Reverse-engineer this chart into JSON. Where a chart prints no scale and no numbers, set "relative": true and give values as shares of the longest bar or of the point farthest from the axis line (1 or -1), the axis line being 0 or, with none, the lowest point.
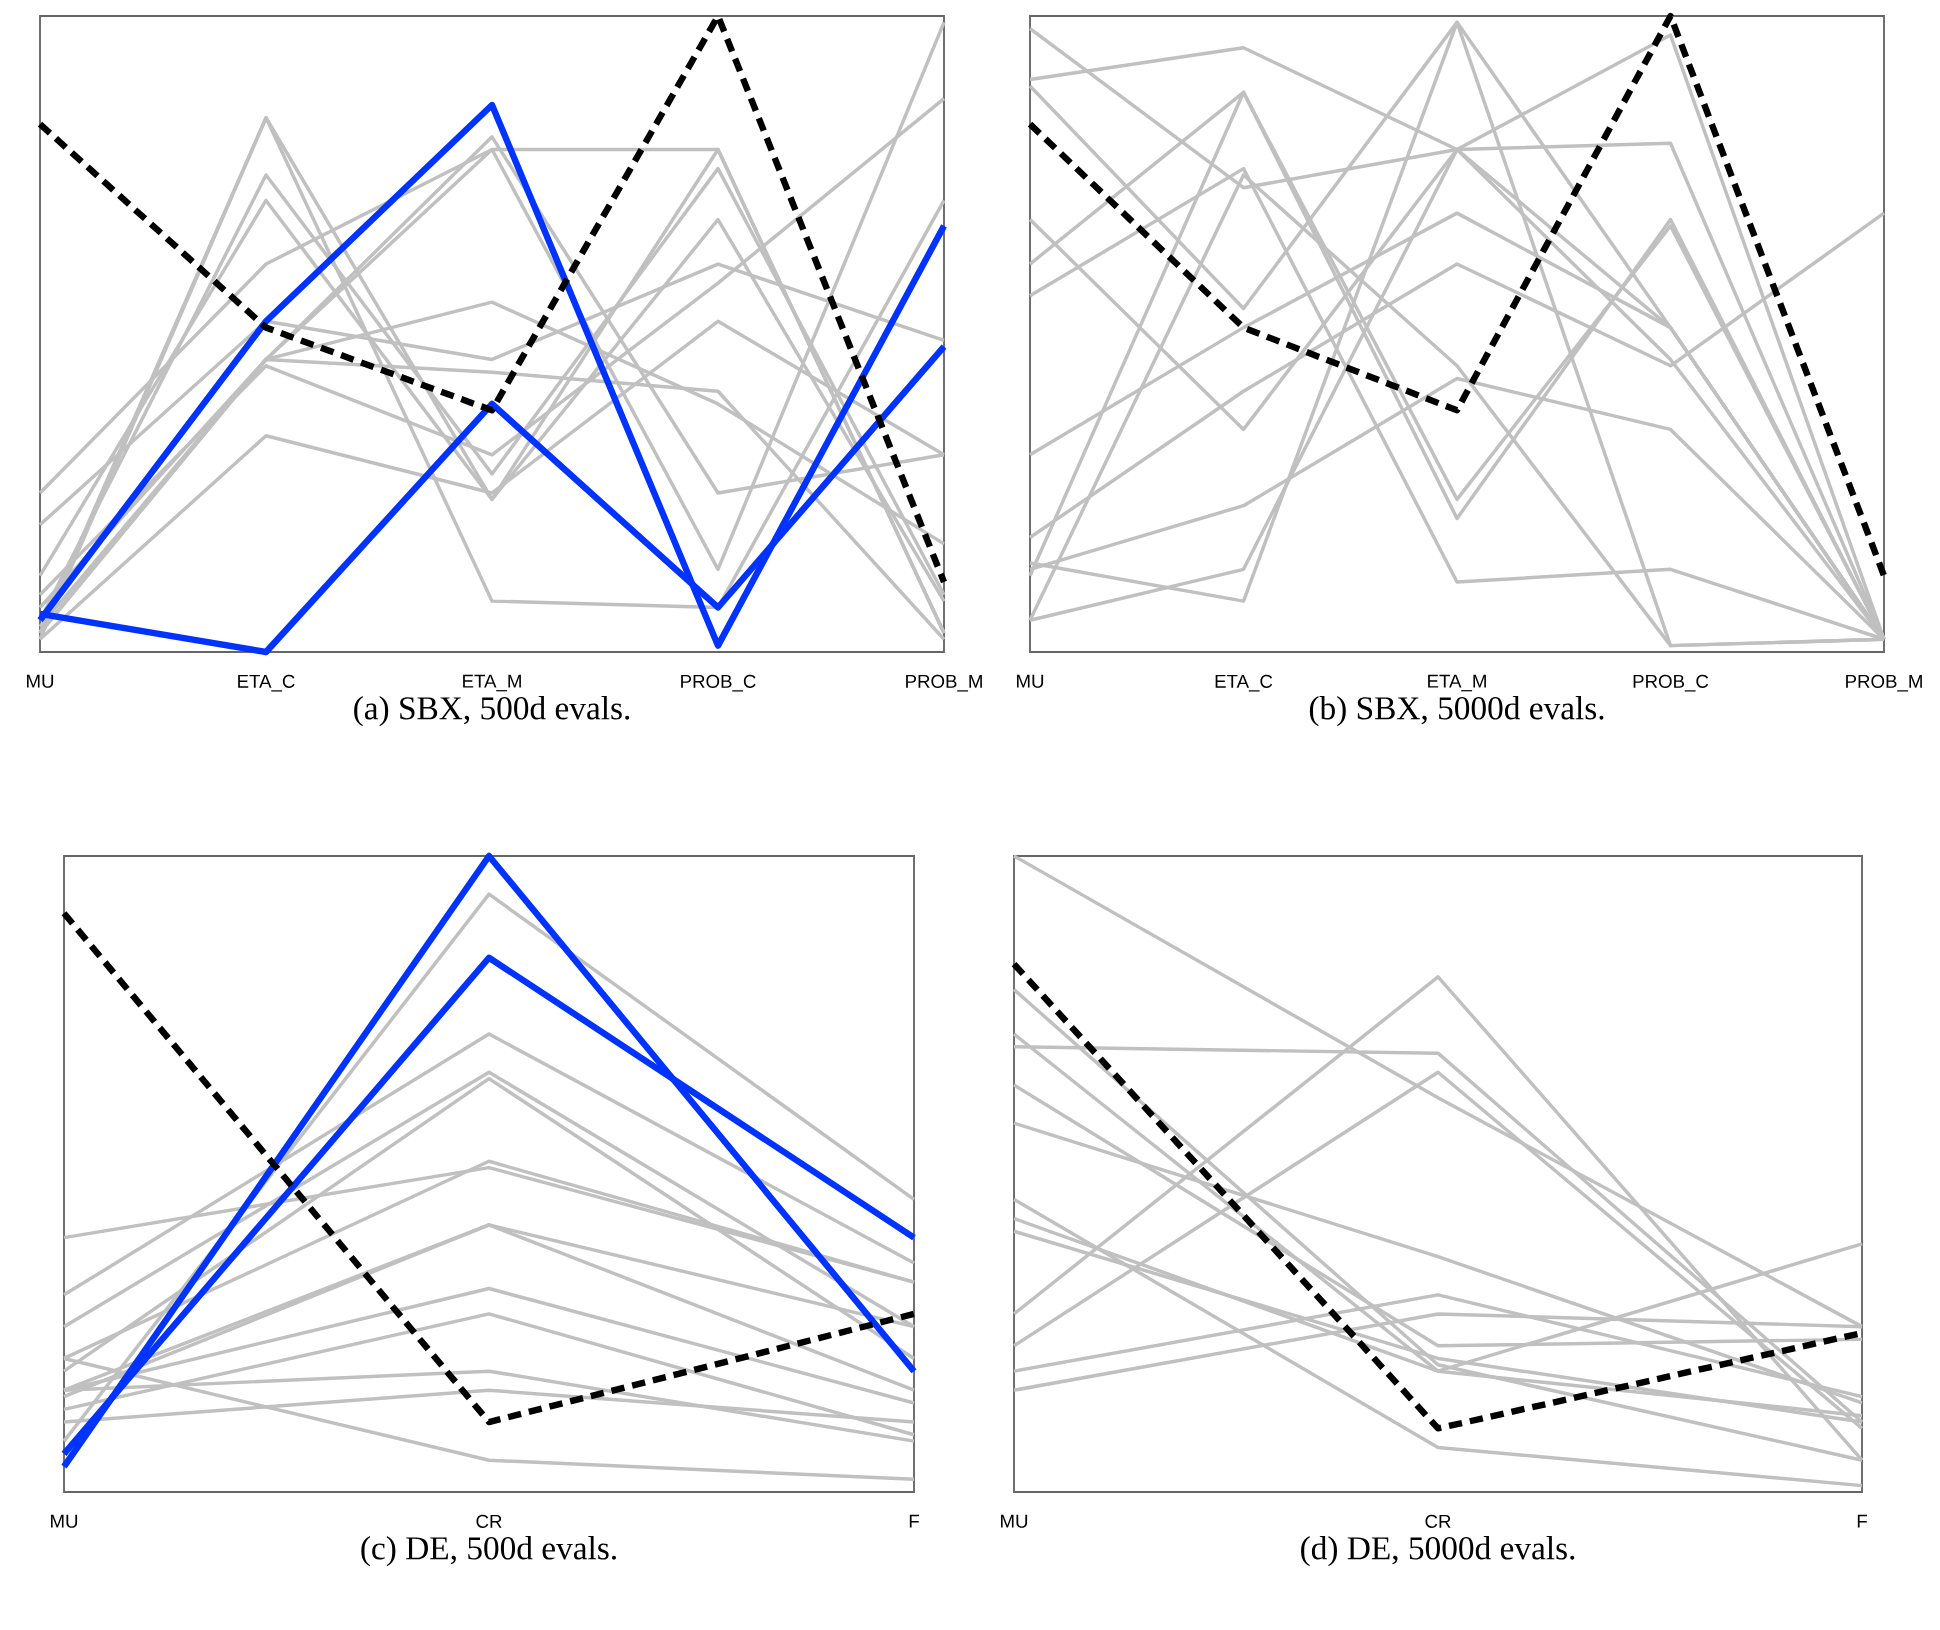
{
  "chart_data": [
    {
      "type": "line",
      "title": "(a) SBX, 500d evals.",
      "relative": true,
      "categories": [
        "MU",
        "ETA_C",
        "ETA_M",
        "PROB_C",
        "PROB_M"
      ],
      "series": [
        {
          "color": "#c0c0c0",
          "values": [
            0.03,
            0.84,
            0.24,
            0.79,
            0.03
          ]
        },
        {
          "color": "#c0c0c0",
          "values": [
            0.05,
            0.75,
            0.28,
            0.76,
            0.09
          ]
        },
        {
          "color": "#c0c0c0",
          "values": [
            0.12,
            0.71,
            0.24,
            0.68,
            0.08
          ]
        },
        {
          "color": "#c0c0c0",
          "values": [
            0.25,
            0.61,
            0.79,
            0.13,
            0.99
          ]
        },
        {
          "color": "#c0c0c0",
          "values": [
            0.2,
            0.52,
            0.46,
            0.61,
            0.49
          ]
        },
        {
          "color": "#c0c0c0",
          "values": [
            0.03,
            0.46,
            0.55,
            0.39,
            0.17
          ]
        },
        {
          "color": "#c0c0c0",
          "values": [
            0.09,
            0.45,
            0.31,
            0.58,
            0.87
          ]
        },
        {
          "color": "#c0c0c0",
          "values": [
            0.02,
            0.34,
            0.25,
            0.52,
            0.31
          ]
        },
        {
          "color": "#c0c0c0",
          "values": [
            0.02,
            0.84,
            0.08,
            0.07,
            0.71
          ]
        },
        {
          "color": "#c0c0c0",
          "values": [
            0.07,
            0.46,
            0.44,
            0.41,
            0.02
          ]
        },
        {
          "color": "#c0c0c0",
          "values": [
            0.03,
            0.46,
            0.81,
            0.25,
            0.31
          ]
        },
        {
          "color": "#c0c0c0",
          "values": [
            0.04,
            0.46,
            0.79,
            0.79,
            0.03
          ]
        },
        {
          "color": "#0033ff",
          "values": [
            0.06,
            0.0,
            0.39,
            0.07,
            0.48
          ]
        },
        {
          "color": "#0033ff",
          "values": [
            0.05,
            0.52,
            0.86,
            0.01,
            0.67
          ]
        },
        {
          "color": "#000000",
          "line_style": "dashed",
          "values": [
            0.83,
            0.51,
            0.38,
            1.0,
            0.11
          ]
        }
      ]
    },
    {
      "type": "line",
      "title": "(b) SBX, 5000d evals.",
      "relative": true,
      "categories": [
        "MU",
        "ETA_C",
        "ETA_M",
        "PROB_C",
        "PROB_M"
      ],
      "series": [
        {
          "color": "#c0c0c0",
          "values": [
            0.98,
            0.73,
            0.79,
            0.51,
            0.02
          ]
        },
        {
          "color": "#c0c0c0",
          "values": [
            0.9,
            0.95,
            0.79,
            0.46,
            0.02
          ]
        },
        {
          "color": "#c0c0c0",
          "values": [
            0.89,
            0.54,
            0.99,
            0.01,
            0.02
          ]
        },
        {
          "color": "#c0c0c0",
          "values": [
            0.68,
            0.35,
            0.79,
            0.97,
            0.02
          ]
        },
        {
          "color": "#c0c0c0",
          "values": [
            0.61,
            0.88,
            0.24,
            0.67,
            0.02
          ]
        },
        {
          "color": "#c0c0c0",
          "values": [
            0.56,
            0.76,
            0.11,
            0.13,
            0.02
          ]
        },
        {
          "color": "#c0c0c0",
          "values": [
            0.31,
            0.51,
            0.69,
            0.51,
            0.02
          ]
        },
        {
          "color": "#c0c0c0",
          "values": [
            0.18,
            0.41,
            0.61,
            0.45,
            0.69
          ]
        },
        {
          "color": "#c0c0c0",
          "values": [
            0.13,
            0.23,
            0.43,
            0.35,
            0.02
          ]
        },
        {
          "color": "#c0c0c0",
          "values": [
            0.05,
            0.13,
            0.79,
            0.8,
            0.02
          ]
        },
        {
          "color": "#c0c0c0",
          "values": [
            0.12,
            0.88,
            0.21,
            0.68,
            0.02
          ]
        },
        {
          "color": "#c0c0c0",
          "values": [
            0.14,
            0.08,
            0.99,
            0.51,
            0.02
          ]
        },
        {
          "color": "#c0c0c0",
          "values": [
            0.05,
            0.75,
            0.45,
            0.01,
            0.02
          ]
        },
        {
          "color": "#000000",
          "line_style": "dashed",
          "values": [
            0.83,
            0.51,
            0.38,
            1.0,
            0.12
          ]
        }
      ]
    },
    {
      "type": "line",
      "title": "(c) DE, 500d evals.",
      "relative": true,
      "categories": [
        "MU",
        "CR",
        "F"
      ],
      "series": [
        {
          "color": "#c0c0c0",
          "values": [
            0.08,
            0.94,
            0.46
          ]
        },
        {
          "color": "#c0c0c0",
          "values": [
            0.4,
            0.51,
            0.33
          ]
        },
        {
          "color": "#c0c0c0",
          "values": [
            0.31,
            0.72,
            0.36
          ]
        },
        {
          "color": "#c0c0c0",
          "values": [
            0.26,
            0.66,
            0.26
          ]
        },
        {
          "color": "#c0c0c0",
          "values": [
            0.21,
            0.52,
            0.33
          ]
        },
        {
          "color": "#c0c0c0",
          "values": [
            0.19,
            0.65,
            0.21
          ]
        },
        {
          "color": "#c0c0c0",
          "values": [
            0.16,
            0.42,
            0.26
          ]
        },
        {
          "color": "#c0c0c0",
          "values": [
            0.15,
            0.42,
            0.16
          ]
        },
        {
          "color": "#c0c0c0",
          "values": [
            0.16,
            0.32,
            0.14
          ]
        },
        {
          "color": "#c0c0c0",
          "values": [
            0.13,
            0.28,
            0.09
          ]
        },
        {
          "color": "#c0c0c0",
          "values": [
            0.16,
            0.19,
            0.08
          ]
        },
        {
          "color": "#c0c0c0",
          "values": [
            0.21,
            0.05,
            0.02
          ]
        },
        {
          "color": "#c0c0c0",
          "values": [
            0.11,
            0.16,
            0.11
          ]
        },
        {
          "color": "#0033ff",
          "values": [
            0.04,
            1.0,
            0.19
          ]
        },
        {
          "color": "#0033ff",
          "values": [
            0.06,
            0.84,
            0.4
          ]
        },
        {
          "color": "#000000",
          "line_style": "dashed",
          "values": [
            0.91,
            0.11,
            0.28
          ]
        }
      ]
    },
    {
      "type": "line",
      "title": "(d) DE, 5000d evals.",
      "relative": true,
      "categories": [
        "MU",
        "CR",
        "F"
      ],
      "series": [
        {
          "color": "#c0c0c0",
          "values": [
            1.0,
            0.62,
            0.26
          ]
        },
        {
          "color": "#c0c0c0",
          "values": [
            0.79,
            0.2,
            0.05
          ]
        },
        {
          "color": "#c0c0c0",
          "values": [
            0.72,
            0.19,
            0.12
          ]
        },
        {
          "color": "#c0c0c0",
          "values": [
            0.7,
            0.69,
            0.11
          ]
        },
        {
          "color": "#c0c0c0",
          "values": [
            0.64,
            0.23,
            0.24
          ]
        },
        {
          "color": "#c0c0c0",
          "values": [
            0.58,
            0.37,
            0.14
          ]
        },
        {
          "color": "#c0c0c0",
          "values": [
            0.46,
            0.07,
            0.01
          ]
        },
        {
          "color": "#c0c0c0",
          "values": [
            0.43,
            0.19,
            0.39
          ]
        },
        {
          "color": "#c0c0c0",
          "values": [
            0.41,
            0.21,
            0.11
          ]
        },
        {
          "color": "#c0c0c0",
          "values": [
            0.28,
            0.81,
            0.05
          ]
        },
        {
          "color": "#c0c0c0",
          "values": [
            0.23,
            0.66,
            0.1
          ]
        },
        {
          "color": "#c0c0c0",
          "values": [
            0.19,
            0.31,
            0.15
          ]
        },
        {
          "color": "#c0c0c0",
          "values": [
            0.16,
            0.28,
            0.26
          ]
        },
        {
          "color": "#000000",
          "line_style": "dashed",
          "values": [
            0.83,
            0.1,
            0.25
          ]
        }
      ]
    }
  ]
}
